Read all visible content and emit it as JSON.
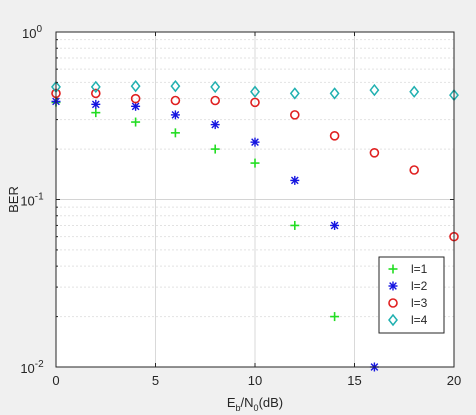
{
  "chart_data": {
    "type": "scatter",
    "title": "",
    "xlabel": {
      "main": "E",
      "sub1": "b",
      "slash": "/N",
      "sub2": "0",
      "unit": "(dB)"
    },
    "ylabel": "BER",
    "xlim": [
      0,
      20
    ],
    "ylim": [
      0.01,
      1
    ],
    "yscale": "log",
    "grid": true,
    "legend_position": "bottom-right",
    "xticks": [
      {
        "value": 0,
        "label": "0"
      },
      {
        "value": 5,
        "label": "5"
      },
      {
        "value": 10,
        "label": "10"
      },
      {
        "value": 15,
        "label": "15"
      },
      {
        "value": 20,
        "label": "20"
      }
    ],
    "yticks": [
      {
        "value": 1,
        "base": "10",
        "exp": "0"
      },
      {
        "value": 0.1,
        "base": "10",
        "exp": "-1"
      },
      {
        "value": 0.01,
        "base": "10",
        "exp": "-2"
      }
    ],
    "series": [
      {
        "name": "l=1",
        "marker": "plus",
        "color": "#22dd22",
        "x": [
          0,
          2,
          4,
          6,
          8,
          10,
          12,
          14
        ],
        "y": [
          0.38,
          0.33,
          0.29,
          0.25,
          0.2,
          0.165,
          0.07,
          0.02
        ]
      },
      {
        "name": "l=2",
        "marker": "asterisk",
        "color": "#1515e0",
        "x": [
          0,
          2,
          4,
          6,
          8,
          10,
          12,
          14,
          16
        ],
        "y": [
          0.385,
          0.37,
          0.36,
          0.32,
          0.28,
          0.22,
          0.13,
          0.07,
          0.01
        ]
      },
      {
        "name": "l=3",
        "marker": "circle",
        "color": "#e02020",
        "x": [
          0,
          2,
          4,
          6,
          8,
          10,
          12,
          14,
          16,
          18,
          20
        ],
        "y": [
          0.43,
          0.43,
          0.4,
          0.39,
          0.39,
          0.38,
          0.32,
          0.24,
          0.19,
          0.15,
          0.06
        ]
      },
      {
        "name": "l=4",
        "marker": "diamond",
        "color": "#20b0b0",
        "x": [
          0,
          2,
          4,
          6,
          8,
          10,
          12,
          14,
          16,
          18,
          20
        ],
        "y": [
          0.47,
          0.47,
          0.475,
          0.475,
          0.47,
          0.44,
          0.43,
          0.43,
          0.45,
          0.44,
          0.42
        ]
      }
    ]
  }
}
